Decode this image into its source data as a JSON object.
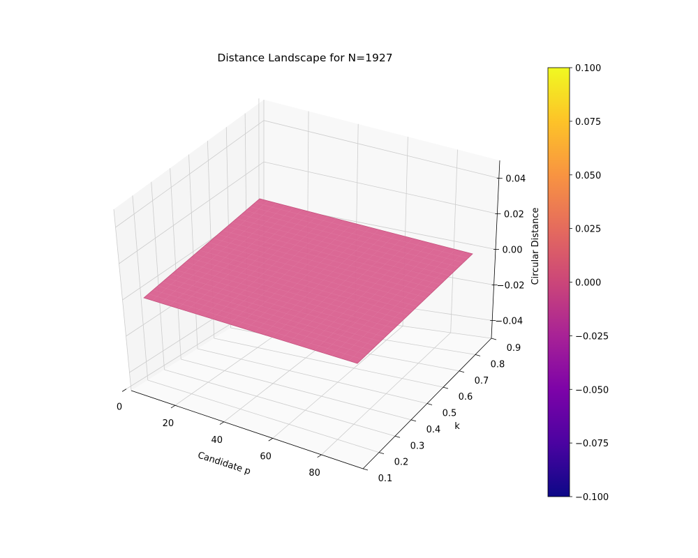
{
  "chart_data": {
    "type": "surface",
    "title": "Distance Landscape for N=1927",
    "xlabel": "Candidate p",
    "ylabel": "k",
    "zlabel": "Circular Distance",
    "x_ticks": [
      "0",
      "20",
      "40",
      "60",
      "80"
    ],
    "y_ticks": [
      "0.1",
      "0.2",
      "0.3",
      "0.4",
      "0.5",
      "0.6",
      "0.7",
      "0.8",
      "0.9"
    ],
    "z_ticks": [
      "−0.04",
      "−0.02",
      "0.00",
      "0.02",
      "0.04"
    ],
    "xlim": [
      2,
      97
    ],
    "ylim": [
      0.1,
      0.9
    ],
    "zlim": [
      -0.05,
      0.05
    ],
    "surface": {
      "z_value": 0.0,
      "description": "constant plane"
    },
    "colormap": "plasma",
    "colorbar": {
      "ticks": [
        "−0.100",
        "−0.075",
        "−0.050",
        "−0.025",
        "0.000",
        "0.025",
        "0.050",
        "0.075",
        "0.100"
      ],
      "range": [
        -0.1,
        0.1
      ]
    },
    "grid": true,
    "colors": {
      "surface": "#d9608f",
      "surface_edge": "#c4507c",
      "pane": "#f2f2f2",
      "pane_side": "#ececec",
      "grid": "#cccccc"
    }
  }
}
